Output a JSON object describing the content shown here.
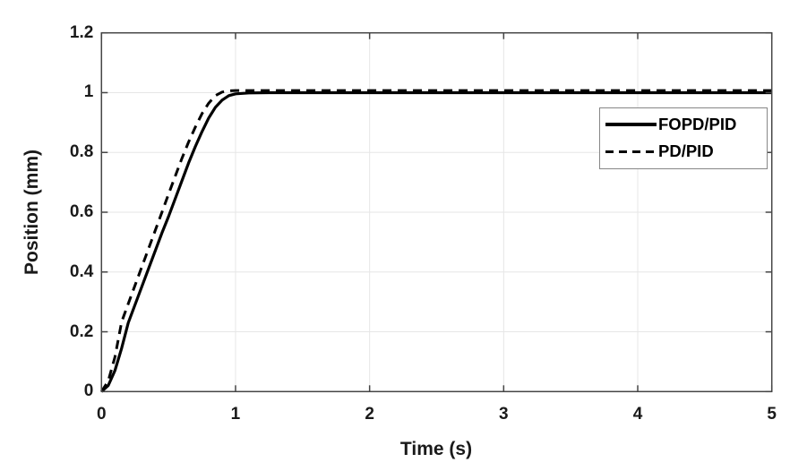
{
  "figure": {
    "background": "#ffffff",
    "axis_box_color": "#454545",
    "tick_color": "#454545",
    "grid_color": "#e6e6e6",
    "tick_label_color": "#1a1a1a",
    "legend_border_color": "#878787"
  },
  "chart_data": {
    "type": "line",
    "title": "",
    "xlabel": "Time (s)",
    "ylabel": "Position (mm)",
    "xlim": [
      0,
      5
    ],
    "ylim": [
      0,
      1.2
    ],
    "xticks": [
      0,
      1,
      2,
      3,
      4,
      5
    ],
    "yticks": [
      0,
      0.2,
      0.4,
      0.6,
      0.8,
      1,
      1.2
    ],
    "xtick_labels": [
      "0",
      "1",
      "2",
      "3",
      "4",
      "5"
    ],
    "ytick_labels": [
      "0",
      "0.2",
      "0.4",
      "0.6",
      "0.8",
      "1",
      "1.2"
    ],
    "grid": true,
    "legend_position": "inside upper right",
    "series": [
      {
        "name": "FOPD/PID",
        "style": "solid",
        "color": "#000000",
        "x": [
          0,
          0.05,
          0.1,
          0.15,
          0.2,
          0.25,
          0.3,
          0.35,
          0.4,
          0.45,
          0.5,
          0.55,
          0.6,
          0.65,
          0.7,
          0.75,
          0.8,
          0.85,
          0.9,
          0.95,
          1.0,
          1.1,
          1.25,
          1.5,
          2,
          2.5,
          3,
          3.5,
          4,
          4.5,
          5
        ],
        "y": [
          0,
          0.02,
          0.07,
          0.145,
          0.23,
          0.29,
          0.35,
          0.41,
          0.47,
          0.53,
          0.585,
          0.645,
          0.705,
          0.765,
          0.82,
          0.87,
          0.915,
          0.951,
          0.975,
          0.99,
          0.996,
          0.999,
          1.0,
          1.0,
          1.0,
          1.0,
          1.0,
          1.0,
          1.0,
          1.0,
          1.0
        ]
      },
      {
        "name": "PD/PID",
        "style": "dashed",
        "color": "#000000",
        "x": [
          0,
          0.05,
          0.1,
          0.15,
          0.2,
          0.25,
          0.3,
          0.35,
          0.4,
          0.45,
          0.5,
          0.55,
          0.6,
          0.65,
          0.7,
          0.75,
          0.8,
          0.85,
          0.9,
          0.95,
          1.0,
          1.25,
          1.5,
          2,
          2.5,
          3,
          3.5,
          4,
          4.5,
          5
        ],
        "y": [
          0,
          0.035,
          0.115,
          0.233,
          0.294,
          0.355,
          0.416,
          0.477,
          0.538,
          0.599,
          0.66,
          0.72,
          0.78,
          0.835,
          0.885,
          0.93,
          0.965,
          0.99,
          1.002,
          1.006,
          1.007,
          1.007,
          1.007,
          1.007,
          1.007,
          1.007,
          1.007,
          1.007,
          1.007,
          1.007
        ]
      }
    ]
  },
  "legend": {
    "items": [
      {
        "label": "FOPD/PID",
        "style": "solid"
      },
      {
        "label": "PD/PID",
        "style": "dashed"
      }
    ]
  }
}
